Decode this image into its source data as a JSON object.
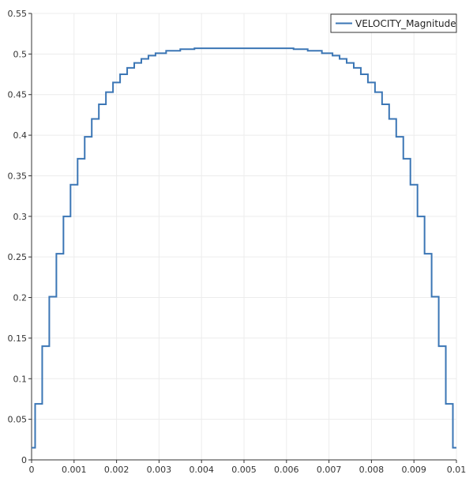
{
  "chart_data": {
    "type": "line",
    "title": "",
    "xlabel": "",
    "ylabel": "",
    "xlim": [
      0,
      0.01
    ],
    "ylim": [
      0,
      0.55
    ],
    "x_ticks": [
      0,
      0.001,
      0.002,
      0.003,
      0.004,
      0.005,
      0.006,
      0.007,
      0.008,
      0.009,
      0.01
    ],
    "x_tick_labels": [
      "0",
      "0.001",
      "0.002",
      "0.003",
      "0.004",
      "0.005",
      "0.006",
      "0.007",
      "0.008",
      "0.009",
      "0.01"
    ],
    "y_ticks": [
      0,
      0.05,
      0.1,
      0.15,
      0.2,
      0.25,
      0.3,
      0.35,
      0.4,
      0.45,
      0.5,
      0.55
    ],
    "y_tick_labels": [
      "0",
      "0.05",
      "0.1",
      "0.15",
      "0.2",
      "0.25",
      "0.3",
      "0.35",
      "0.4",
      "0.45",
      "0.5",
      "0.55"
    ],
    "grid": true,
    "legend_position": "top-right",
    "series": [
      {
        "name": "VELOCITY_Magnitude",
        "color": "#3b76b5",
        "step": true,
        "x": [
          0,
          0.000167,
          0.000333,
          0.0005,
          0.000667,
          0.000833,
          0.001,
          0.001167,
          0.001333,
          0.0015,
          0.001667,
          0.001833,
          0.002,
          0.002167,
          0.002333,
          0.0025,
          0.002667,
          0.002833,
          0.003,
          0.003333,
          0.003667,
          0.004,
          0.005,
          0.006,
          0.006333,
          0.006667,
          0.007,
          0.007167,
          0.007333,
          0.0075,
          0.007667,
          0.007833,
          0.008,
          0.008167,
          0.008333,
          0.0085,
          0.008667,
          0.008833,
          0.009,
          0.009167,
          0.009333,
          0.0095,
          0.009667,
          0.009833,
          0.01
        ],
        "y": [
          0.015,
          0.069,
          0.14,
          0.201,
          0.254,
          0.3,
          0.339,
          0.371,
          0.398,
          0.42,
          0.438,
          0.453,
          0.465,
          0.475,
          0.483,
          0.489,
          0.494,
          0.498,
          0.501,
          0.504,
          0.506,
          0.507,
          0.507,
          0.507,
          0.506,
          0.504,
          0.501,
          0.498,
          0.494,
          0.489,
          0.483,
          0.475,
          0.465,
          0.453,
          0.438,
          0.42,
          0.398,
          0.371,
          0.339,
          0.3,
          0.254,
          0.201,
          0.14,
          0.069,
          0.015
        ]
      }
    ]
  }
}
